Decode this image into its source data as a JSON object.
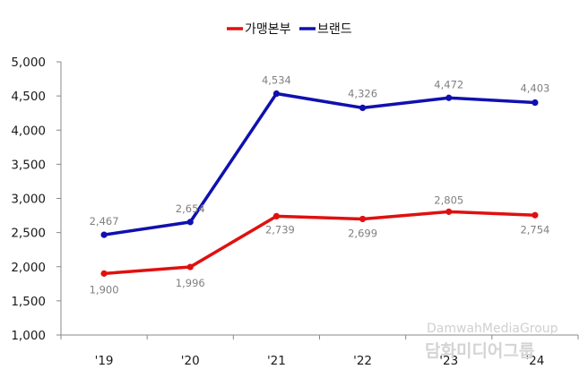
{
  "chart_data": {
    "type": "line",
    "categories": [
      "'19",
      "'20",
      "'21",
      "'22",
      "'23",
      "'24"
    ],
    "series": [
      {
        "name": "가맹본부",
        "color": "#e01010",
        "values": [
          1900,
          1996,
          2739,
          2699,
          2805,
          2754
        ],
        "labels": [
          "1,900",
          "1,996",
          "2,739",
          "2,699",
          "2,805",
          "2,754"
        ]
      },
      {
        "name": "브랜드",
        "color": "#1010b0",
        "values": [
          2467,
          2654,
          4534,
          4326,
          4472,
          4403
        ],
        "labels": [
          "2,467",
          "2,654",
          "4,534",
          "4,326",
          "4,472",
          "4,403"
        ]
      }
    ],
    "ylim": [
      1000,
      5000
    ],
    "yticks": [
      1000,
      1500,
      2000,
      2500,
      3000,
      3500,
      4000,
      4500,
      5000
    ],
    "ytick_labels": [
      "1,000",
      "1,500",
      "2,000",
      "2,500",
      "3,000",
      "3,500",
      "4,000",
      "4,500",
      "5,000"
    ],
    "grid": false,
    "legend": "top-center",
    "title": "",
    "xlabel": "",
    "ylabel": ""
  },
  "watermark": {
    "english": "DamwahMediaGroup",
    "korean": "담화미디어그룹"
  }
}
